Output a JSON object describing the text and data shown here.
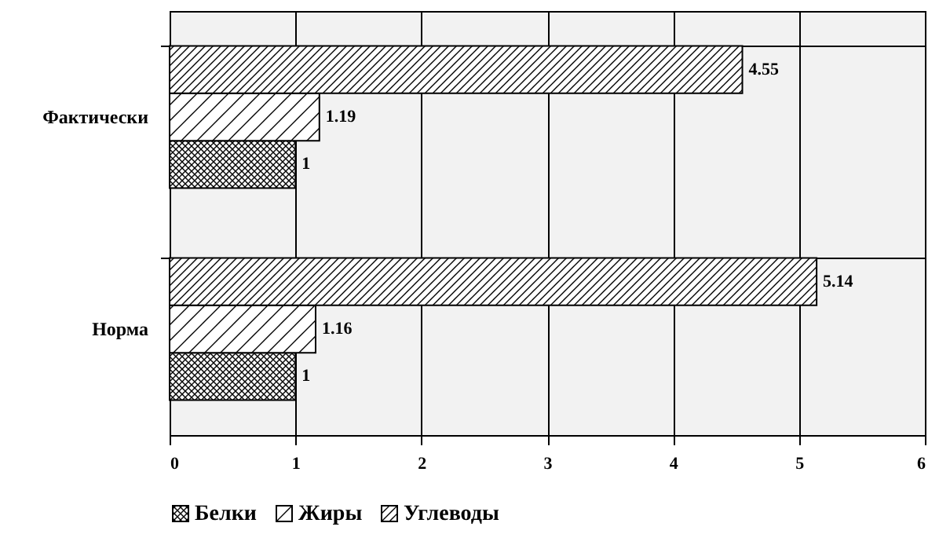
{
  "chart_data": {
    "type": "bar",
    "orientation": "horizontal",
    "categories": [
      "Фактически",
      "Норма"
    ],
    "series": [
      {
        "name": "Белки",
        "color": "#000000",
        "values": [
          1,
          1
        ]
      },
      {
        "name": "Жиры",
        "color": "#000000",
        "values": [
          1.19,
          1.16
        ]
      },
      {
        "name": "Углеводы",
        "color": "#000000",
        "values": [
          4.55,
          5.14
        ]
      }
    ],
    "xlim": [
      0,
      6
    ],
    "xticks": [
      0,
      1,
      2,
      3,
      4,
      5,
      6
    ],
    "grid": true,
    "legend": "bottom",
    "data_labels": true
  }
}
